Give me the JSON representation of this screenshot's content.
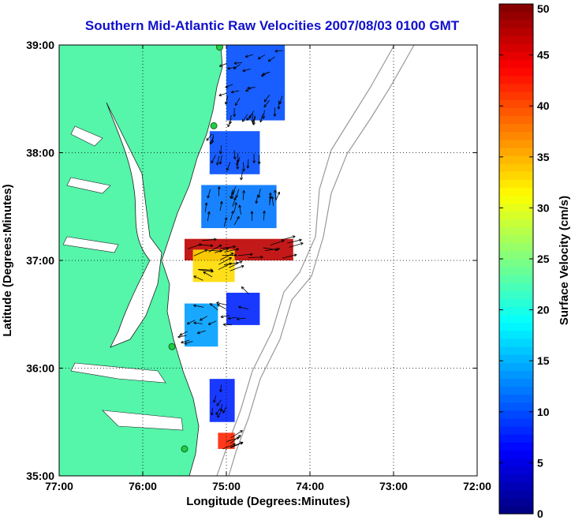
{
  "chart_data": {
    "type": "heatmap",
    "title": "Southern Mid-Atlantic Raw Velocities 2007/08/03 0100 GMT",
    "xlabel": "Longitude (Degrees:Minutes)",
    "ylabel": "Latitude (Degrees:Minutes)",
    "xlim": [
      -77,
      -72
    ],
    "ylim": [
      35,
      39
    ],
    "x_ticks": [
      {
        "value": -77,
        "label": "77:00"
      },
      {
        "value": -76,
        "label": "76:00"
      },
      {
        "value": -75,
        "label": "75:00"
      },
      {
        "value": -74,
        "label": "74:00"
      },
      {
        "value": -73,
        "label": "73:00"
      },
      {
        "value": -72,
        "label": "72:00"
      }
    ],
    "y_ticks": [
      {
        "value": 35,
        "label": "35:00"
      },
      {
        "value": 36,
        "label": "36:00"
      },
      {
        "value": 37,
        "label": "37:00"
      },
      {
        "value": 38,
        "label": "38:00"
      },
      {
        "value": 39,
        "label": "39:00"
      }
    ],
    "grid": true,
    "colorbar": {
      "label": "Surface Velocity (cm/s)",
      "min": 0,
      "max": 50,
      "ticks": [
        "0",
        "5",
        "10",
        "15",
        "20",
        "25",
        "30",
        "35",
        "40",
        "45",
        "50"
      ],
      "colormap": "jet"
    },
    "velocity_patches": [
      {
        "lon_min": -75.2,
        "lon_max": -74.6,
        "lat_min": 37.8,
        "lat_max": 38.2,
        "speed": 10
      },
      {
        "lon_min": -75.0,
        "lon_max": -74.3,
        "lat_min": 38.3,
        "lat_max": 39.0,
        "speed": 10
      },
      {
        "lon_min": -75.3,
        "lon_max": -74.4,
        "lat_min": 37.3,
        "lat_max": 37.7,
        "speed": 12
      },
      {
        "lon_min": -75.5,
        "lon_max": -74.2,
        "lat_min": 37.0,
        "lat_max": 37.2,
        "speed": 47
      },
      {
        "lon_min": -75.4,
        "lon_max": -74.9,
        "lat_min": 36.8,
        "lat_max": 37.1,
        "speed": 33
      },
      {
        "lon_min": -75.0,
        "lon_max": -74.6,
        "lat_min": 36.4,
        "lat_max": 36.7,
        "speed": 8
      },
      {
        "lon_min": -75.5,
        "lon_max": -75.1,
        "lat_min": 36.2,
        "lat_max": 36.6,
        "speed": 14
      },
      {
        "lon_min": -75.2,
        "lon_max": -74.9,
        "lat_min": 35.5,
        "lat_max": 35.9,
        "speed": 8
      },
      {
        "lon_min": -75.1,
        "lon_max": -74.9,
        "lat_min": 35.25,
        "lat_max": 35.4,
        "speed": 42
      }
    ],
    "arrow_flow": [
      {
        "lat": 38.8,
        "direction_deg": 250,
        "speed": 15
      },
      {
        "lat": 38.3,
        "direction_deg": 200,
        "speed": 18
      },
      {
        "lat": 37.8,
        "direction_deg": 190,
        "speed": 20
      },
      {
        "lat": 37.4,
        "direction_deg": 10,
        "speed": 22
      },
      {
        "lat": 37.1,
        "direction_deg": 80,
        "speed": 45
      },
      {
        "lat": 36.7,
        "direction_deg": 300,
        "speed": 25
      },
      {
        "lat": 36.3,
        "direction_deg": 260,
        "speed": 18
      },
      {
        "lat": 35.7,
        "direction_deg": 200,
        "speed": 12
      },
      {
        "lat": 35.3,
        "direction_deg": 70,
        "speed": 40
      }
    ],
    "stations": [
      {
        "lon": -75.08,
        "lat": 38.98
      },
      {
        "lon": -75.15,
        "lat": 38.25
      },
      {
        "lon": -75.65,
        "lat": 36.2
      },
      {
        "lon": -75.5,
        "lat": 35.25
      }
    ],
    "colors": {
      "land": "#55f5aa",
      "title": "#1010cc",
      "station": "#22cc44"
    }
  }
}
